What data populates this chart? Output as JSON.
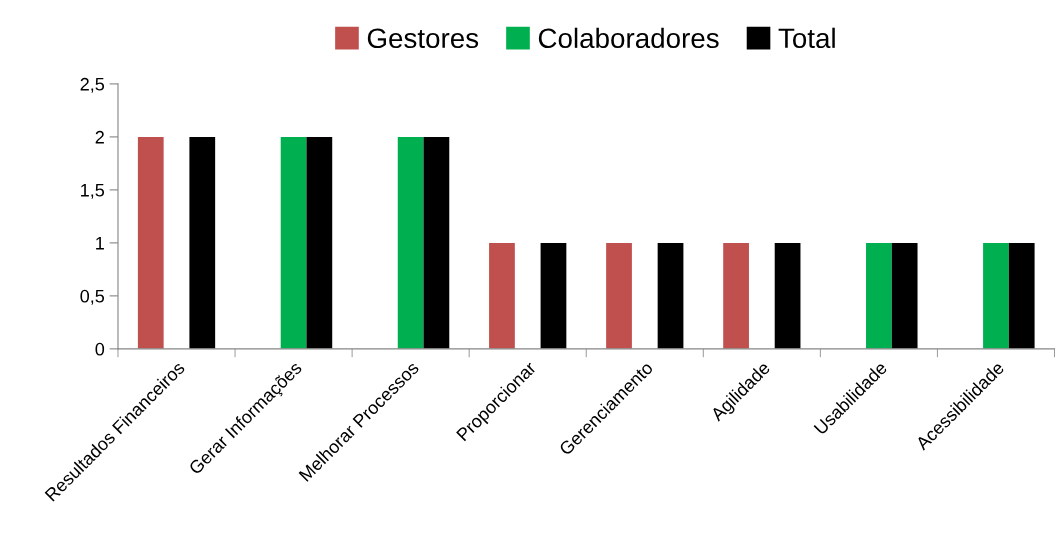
{
  "chart_data": {
    "type": "bar",
    "categories": [
      "Resultados Financeiros",
      "Gerar Informações",
      "Melhorar Processos",
      "Proporcionar",
      "Gerenciamento",
      "Agilidade",
      "Usabilidade",
      "Acessibilidade"
    ],
    "series": [
      {
        "name": "Gestores",
        "color": "#c0504d",
        "values": [
          2,
          0,
          0,
          1,
          1,
          1,
          0,
          0
        ]
      },
      {
        "name": "Colaboradores",
        "color": "#00b050",
        "values": [
          0,
          2,
          2,
          0,
          0,
          0,
          1,
          1
        ]
      },
      {
        "name": "Total",
        "color": "#000000",
        "values": [
          2,
          2,
          2,
          1,
          1,
          1,
          1,
          1
        ]
      }
    ],
    "ylim": [
      0,
      2.5
    ],
    "yticks": [
      0,
      {
        "value": 0.5,
        "label": "0,5"
      },
      1,
      {
        "value": 1.5,
        "label": "1,5"
      },
      2,
      {
        "value": 2.5,
        "label": "2,5"
      }
    ],
    "grid": false,
    "legend": "top"
  }
}
